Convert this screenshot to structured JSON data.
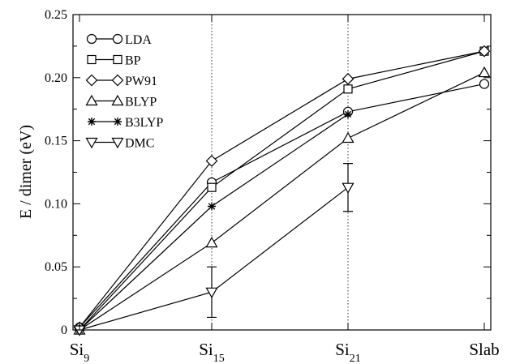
{
  "chart_data": {
    "type": "line",
    "title": "",
    "xlabel": "",
    "ylabel": "E / dimer  (eV)",
    "categories": [
      {
        "base": "Si",
        "sub": "9"
      },
      {
        "base": "Si",
        "sub": "15"
      },
      {
        "base": "Si",
        "sub": "21"
      },
      {
        "base": "Slab",
        "sub": ""
      }
    ],
    "ylim": [
      0,
      0.25
    ],
    "yticks": [
      "0",
      "0.05",
      "0.10",
      "0.15",
      "0.20",
      "0.25"
    ],
    "ytick_values": [
      0,
      0.05,
      0.1,
      0.15,
      0.2,
      0.25
    ],
    "grid": false,
    "reference_lines_at_categories": [
      1,
      2
    ],
    "legend_position": "top-left",
    "series": [
      {
        "name": "LDA",
        "marker": "circle",
        "values": [
          0.002,
          0.117,
          0.173,
          0.195
        ]
      },
      {
        "name": "BP",
        "marker": "square",
        "values": [
          0.0,
          0.113,
          0.191,
          0.221
        ]
      },
      {
        "name": "PW91",
        "marker": "diamond",
        "values": [
          0.002,
          0.134,
          0.199,
          0.221
        ]
      },
      {
        "name": "BLYP",
        "marker": "triangle-up",
        "values": [
          0.0,
          0.069,
          0.152,
          0.204
        ]
      },
      {
        "name": "B3LYP",
        "marker": "star",
        "values": [
          0.0,
          0.098,
          0.171,
          null
        ]
      },
      {
        "name": "DMC",
        "marker": "triangle-down",
        "values": [
          0.0,
          0.03,
          0.113,
          null
        ],
        "errors": [
          null,
          0.02,
          0.019,
          null
        ]
      }
    ]
  }
}
